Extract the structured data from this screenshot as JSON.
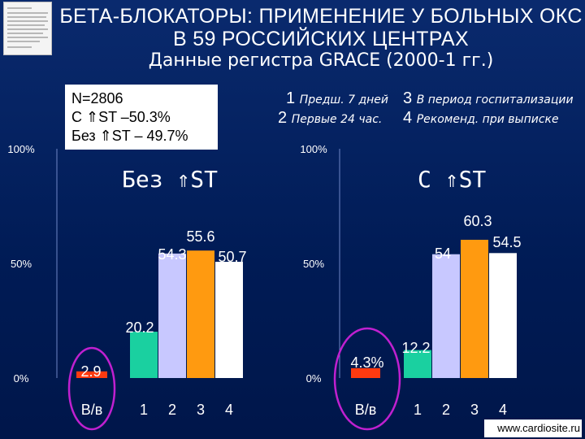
{
  "title": "БЕТА-БЛОКАТОРЫ: ПРИМЕНЕНИЕ У БОЛЬНЫХ ОКС В 59 РОССИЙСКИХ ЦЕНТРАХ",
  "subtitle": "Данные регистра GRACE (2000-1 гг.)",
  "summary_box": {
    "n": "N=2806",
    "with_st": "С ⇑ST –50.3%",
    "without_st": "Без ⇑ST – 49.7%"
  },
  "legend": [
    {
      "num": "1",
      "text": "Предш. 7 дней"
    },
    {
      "num": "2",
      "text": "Первые 24 час."
    },
    {
      "num": "3",
      "text": "В период госпитализации"
    },
    {
      "num": "4",
      "text": "Рекоменд. при выписке"
    }
  ],
  "footer": "www.cardiosite.ru",
  "colors": {
    "iv": "#ff3a10",
    "c1": "#1ad0a0",
    "c2": "#c8c8ff",
    "c3": "#ff9a10",
    "c4": "#ffffff",
    "circle": "#c020d0"
  },
  "chart_data": [
    {
      "type": "bar",
      "title": "Без ⇑ST",
      "categories": [
        "В/в",
        "1",
        "2",
        "3",
        "4"
      ],
      "values": [
        2.9,
        20.2,
        54.3,
        55.6,
        50.7
      ],
      "value_labels": [
        "2.9",
        "20.2",
        "54.3",
        "55.6",
        "50.7"
      ],
      "yticks": [
        "100%",
        "50%",
        "0%"
      ],
      "ylim": [
        0,
        100
      ],
      "highlighted_category": "В/в"
    },
    {
      "type": "bar",
      "title": "С ⇑ST",
      "categories": [
        "В/в",
        "1",
        "2",
        "3",
        "4"
      ],
      "values": [
        4.3,
        12.2,
        54,
        60.3,
        54.5
      ],
      "value_labels": [
        "4.3%",
        "12.2",
        "54",
        "60.3",
        "54.5"
      ],
      "yticks": [
        "100%",
        "50%",
        "0%"
      ],
      "ylim": [
        0,
        100
      ],
      "highlighted_category": "В/в"
    }
  ]
}
